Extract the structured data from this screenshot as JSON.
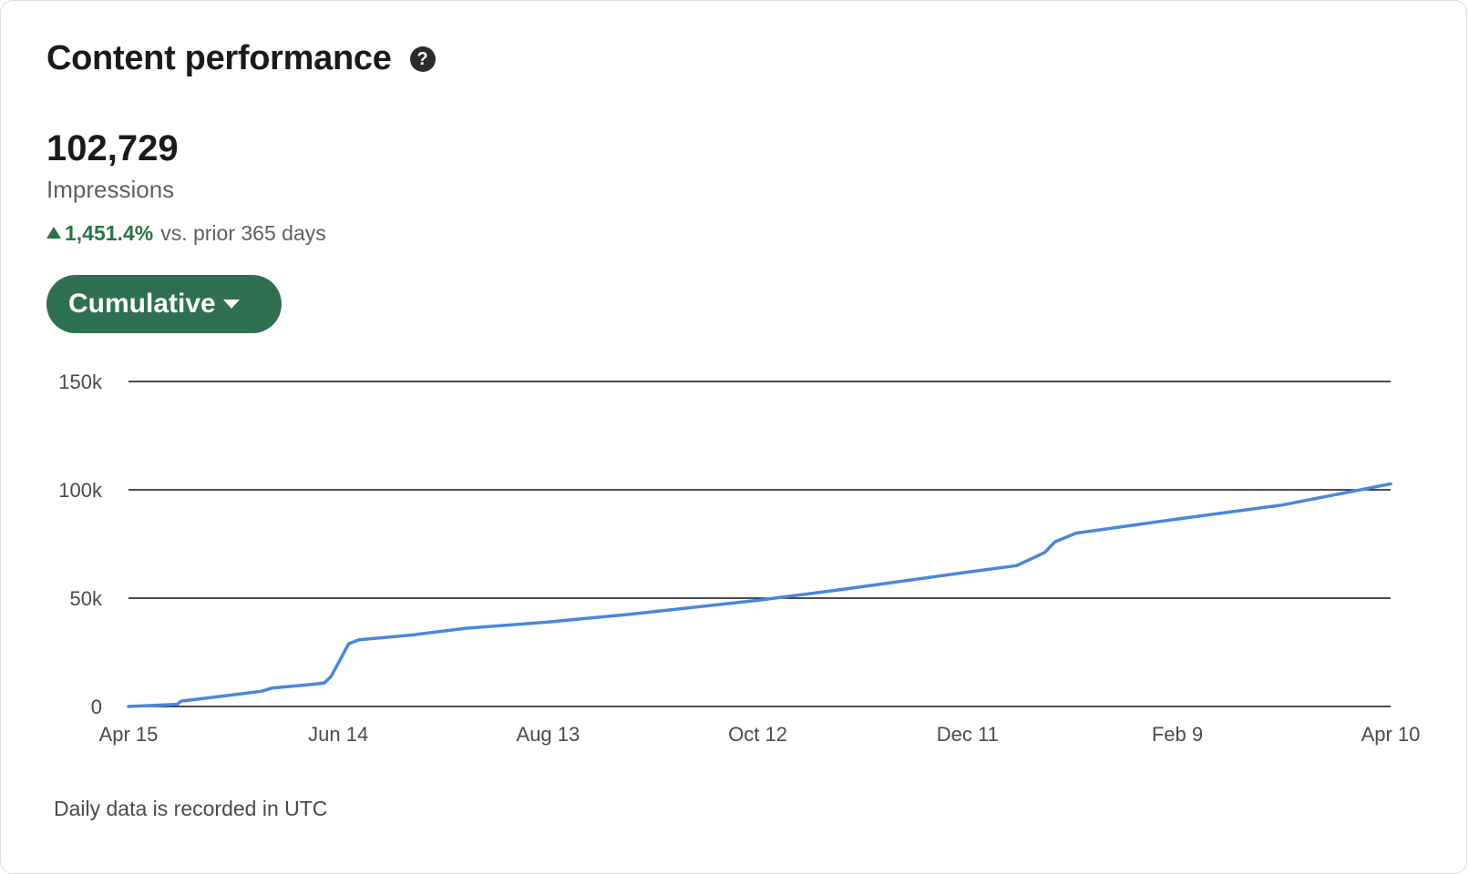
{
  "header": {
    "title": "Content performance",
    "help_icon": "question-circle-icon"
  },
  "metric": {
    "value": "102,729",
    "label": "Impressions",
    "change_icon": "triangle-up-icon",
    "change_value": "1,451.4%",
    "change_suffix": "vs. prior 365 days"
  },
  "dropdown": {
    "label": "Cumulative",
    "icon": "caret-down-icon"
  },
  "footer": {
    "note": "Daily data is recorded in UTC"
  },
  "colors": {
    "accent_green": "#2e7050",
    "positive_green": "#2a7348",
    "line_blue": "#4a86dc"
  },
  "chart_data": {
    "type": "line",
    "title": "",
    "xlabel": "",
    "ylabel": "Impressions",
    "ylim": [
      0,
      150000
    ],
    "yticks": [
      {
        "value": 0,
        "label": "0"
      },
      {
        "value": 50000,
        "label": "50k"
      },
      {
        "value": 100000,
        "label": "100k"
      },
      {
        "value": 150000,
        "label": "150k"
      }
    ],
    "xticks": [
      "Apr 15",
      "Jun 14",
      "Aug 13",
      "Oct 12",
      "Dec 11",
      "Feb 9",
      "Apr 10"
    ],
    "grid": true,
    "series": [
      {
        "values": [
          [
            "Apr 15",
            0
          ],
          [
            "Apr 29",
            1000
          ],
          [
            "Apr 30",
            2500
          ],
          [
            "May 13",
            5000
          ],
          [
            "May 23",
            7000
          ],
          [
            "May 26",
            8500
          ],
          [
            "Jun 5",
            10000
          ],
          [
            "Jun 10",
            10800
          ],
          [
            "Jun 12",
            14000
          ],
          [
            "Jun 14",
            20000
          ],
          [
            "Jun 17",
            29000
          ],
          [
            "Jun 20",
            30800
          ],
          [
            "Jul 5",
            33000
          ],
          [
            "Jul 20",
            36000
          ],
          [
            "Aug 13",
            39000
          ],
          [
            "Sep 5",
            42500
          ],
          [
            "Oct 12",
            49000
          ],
          [
            "Nov 5",
            54000
          ],
          [
            "Dec 11",
            62000
          ],
          [
            "Dec 25",
            65000
          ],
          [
            "Jan 2",
            71000
          ],
          [
            "Jan 5",
            76000
          ],
          [
            "Jan 11",
            80000
          ],
          [
            "Feb 9",
            86500
          ],
          [
            "Mar 10",
            93000
          ],
          [
            "Apr 10",
            102729
          ]
        ]
      }
    ]
  }
}
